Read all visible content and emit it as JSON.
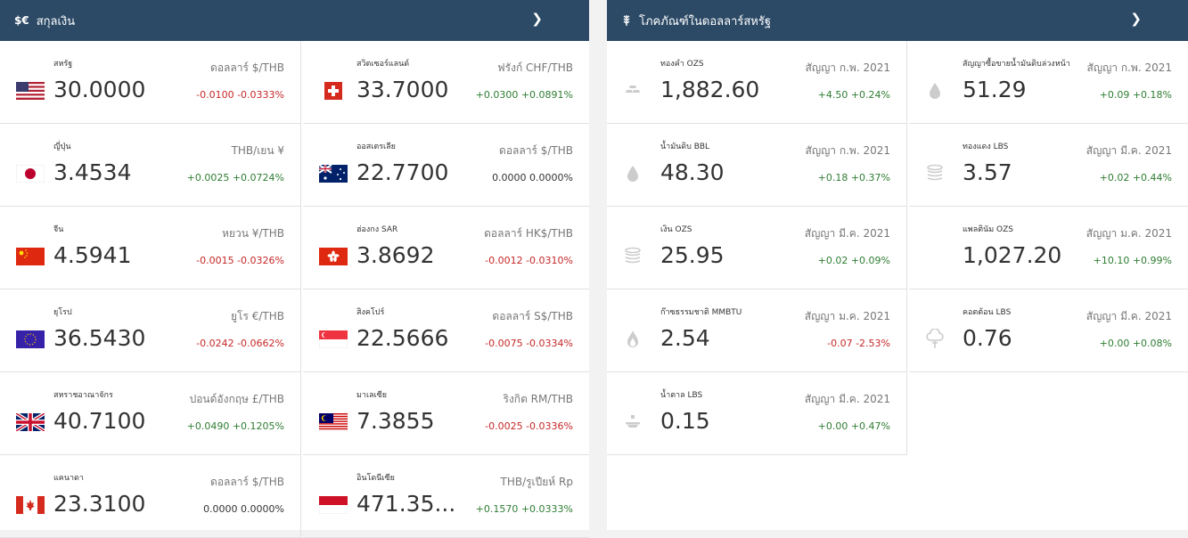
{
  "currency": {
    "title": "สกุลเงิน",
    "icon": "$€",
    "items": [
      {
        "name": "สหรัฐ",
        "value": "30.0000",
        "unit": "ดอลลาร์ $/THB",
        "change": "-0.0100 -0.0333%",
        "dir": "neg",
        "flag": "us-flag-icon"
      },
      {
        "name": "สวิตเซอร์แลนด์",
        "value": "33.7000",
        "unit": "ฟรังก์ CHF/THB",
        "change": "+0.0300 +0.0891%",
        "dir": "pos",
        "flag": "ch-flag-icon"
      },
      {
        "name": "ญี่ปุ่น",
        "value": "3.4534",
        "unit": "THB/เยน ¥",
        "change": "+0.0025 +0.0724%",
        "dir": "pos",
        "flag": "jp-flag-icon"
      },
      {
        "name": "ออสเตรเลีย",
        "value": "22.7700",
        "unit": "ดอลลาร์ $/THB",
        "change": "0.0000 0.0000%",
        "dir": "zero",
        "flag": "au-flag-icon"
      },
      {
        "name": "จีน",
        "value": "4.5941",
        "unit": "หยวน ¥/THB",
        "change": "-0.0015 -0.0326%",
        "dir": "neg",
        "flag": "cn-flag-icon"
      },
      {
        "name": "ฮ่องกง SAR",
        "value": "3.8692",
        "unit": "ดอลลาร์ HK$/THB",
        "change": "-0.0012 -0.0310%",
        "dir": "neg",
        "flag": "hk-flag-icon"
      },
      {
        "name": "ยุโรป",
        "value": "36.5430",
        "unit": "ยูโร €/THB",
        "change": "-0.0242 -0.0662%",
        "dir": "neg",
        "flag": "eu-flag-icon"
      },
      {
        "name": "สิงคโปร์",
        "value": "22.5666",
        "unit": "ดอลลาร์ S$/THB",
        "change": "-0.0075 -0.0334%",
        "dir": "neg",
        "flag": "sg-flag-icon"
      },
      {
        "name": "สหราชอาณาจักร",
        "value": "40.7100",
        "unit": "ปอนด์อังกฤษ £/THB",
        "change": "+0.0490 +0.1205%",
        "dir": "pos",
        "flag": "gb-flag-icon"
      },
      {
        "name": "มาเลเซีย",
        "value": "7.3855",
        "unit": "ริงกิต RM/THB",
        "change": "-0.0025 -0.0336%",
        "dir": "neg",
        "flag": "my-flag-icon"
      },
      {
        "name": "แคนาดา",
        "value": "23.3100",
        "unit": "ดอลลาร์ $/THB",
        "change": "0.0000 0.0000%",
        "dir": "zero",
        "flag": "ca-flag-icon"
      },
      {
        "name": "อินโดนีเซีย",
        "value": "471.35...",
        "unit": "THB/รูเปียห์ Rp",
        "change": "+0.1570 +0.0333%",
        "dir": "pos",
        "flag": "id-flag-icon"
      }
    ]
  },
  "commodity": {
    "title": "โภคภัณฑ์ในดอลลาร์สหรัฐ",
    "icon": "wheat-icon",
    "items": [
      {
        "name": "ทองคำ OZS",
        "value": "1,882.60",
        "unit": "สัญญา ก.พ. 2021",
        "change": "+4.50 +0.24%",
        "dir": "pos",
        "icon": "gold-bars-icon"
      },
      {
        "name": "สัญญาซื้อขายน้ำมันดิบล่วงหน้า",
        "value": "51.29",
        "unit": "สัญญา ก.พ. 2021",
        "change": "+0.09 +0.18%",
        "dir": "pos",
        "icon": "drop-icon"
      },
      {
        "name": "น้ำมันดิบ BBL",
        "value": "48.30",
        "unit": "สัญญา ก.พ. 2021",
        "change": "+0.18 +0.37%",
        "dir": "pos",
        "icon": "drop-icon"
      },
      {
        "name": "ทองแดง LBS",
        "value": "3.57",
        "unit": "สัญญา มี.ค. 2021",
        "change": "+0.02 +0.44%",
        "dir": "pos",
        "icon": "coins-icon"
      },
      {
        "name": "เงิน OZS",
        "value": "25.95",
        "unit": "สัญญา มี.ค. 2021",
        "change": "+0.02 +0.09%",
        "dir": "pos",
        "icon": "coins-icon"
      },
      {
        "name": "แพลตินัม OZS",
        "value": "1,027.20",
        "unit": "สัญญา ม.ค. 2021",
        "change": "+10.10 +0.99%",
        "dir": "pos",
        "icon": "none"
      },
      {
        "name": "ก๊าซธรรมชาติ MMBTU",
        "value": "2.54",
        "unit": "สัญญา ม.ค. 2021",
        "change": "-0.07 -2.53%",
        "dir": "neg",
        "icon": "flame-icon"
      },
      {
        "name": "คอตต้อน LBS",
        "value": "0.76",
        "unit": "สัญญา มี.ค. 2021",
        "change": "+0.00 +0.08%",
        "dir": "pos",
        "icon": "cotton-icon"
      },
      {
        "name": "น้ำตาล LBS",
        "value": "0.15",
        "unit": "สัญญา มี.ค. 2021",
        "change": "+0.00 +0.47%",
        "dir": "pos",
        "icon": "sugar-icon"
      }
    ]
  },
  "colors": {
    "header": "#2c4a66",
    "negative": "#c62828",
    "positive": "#2e7d32"
  }
}
